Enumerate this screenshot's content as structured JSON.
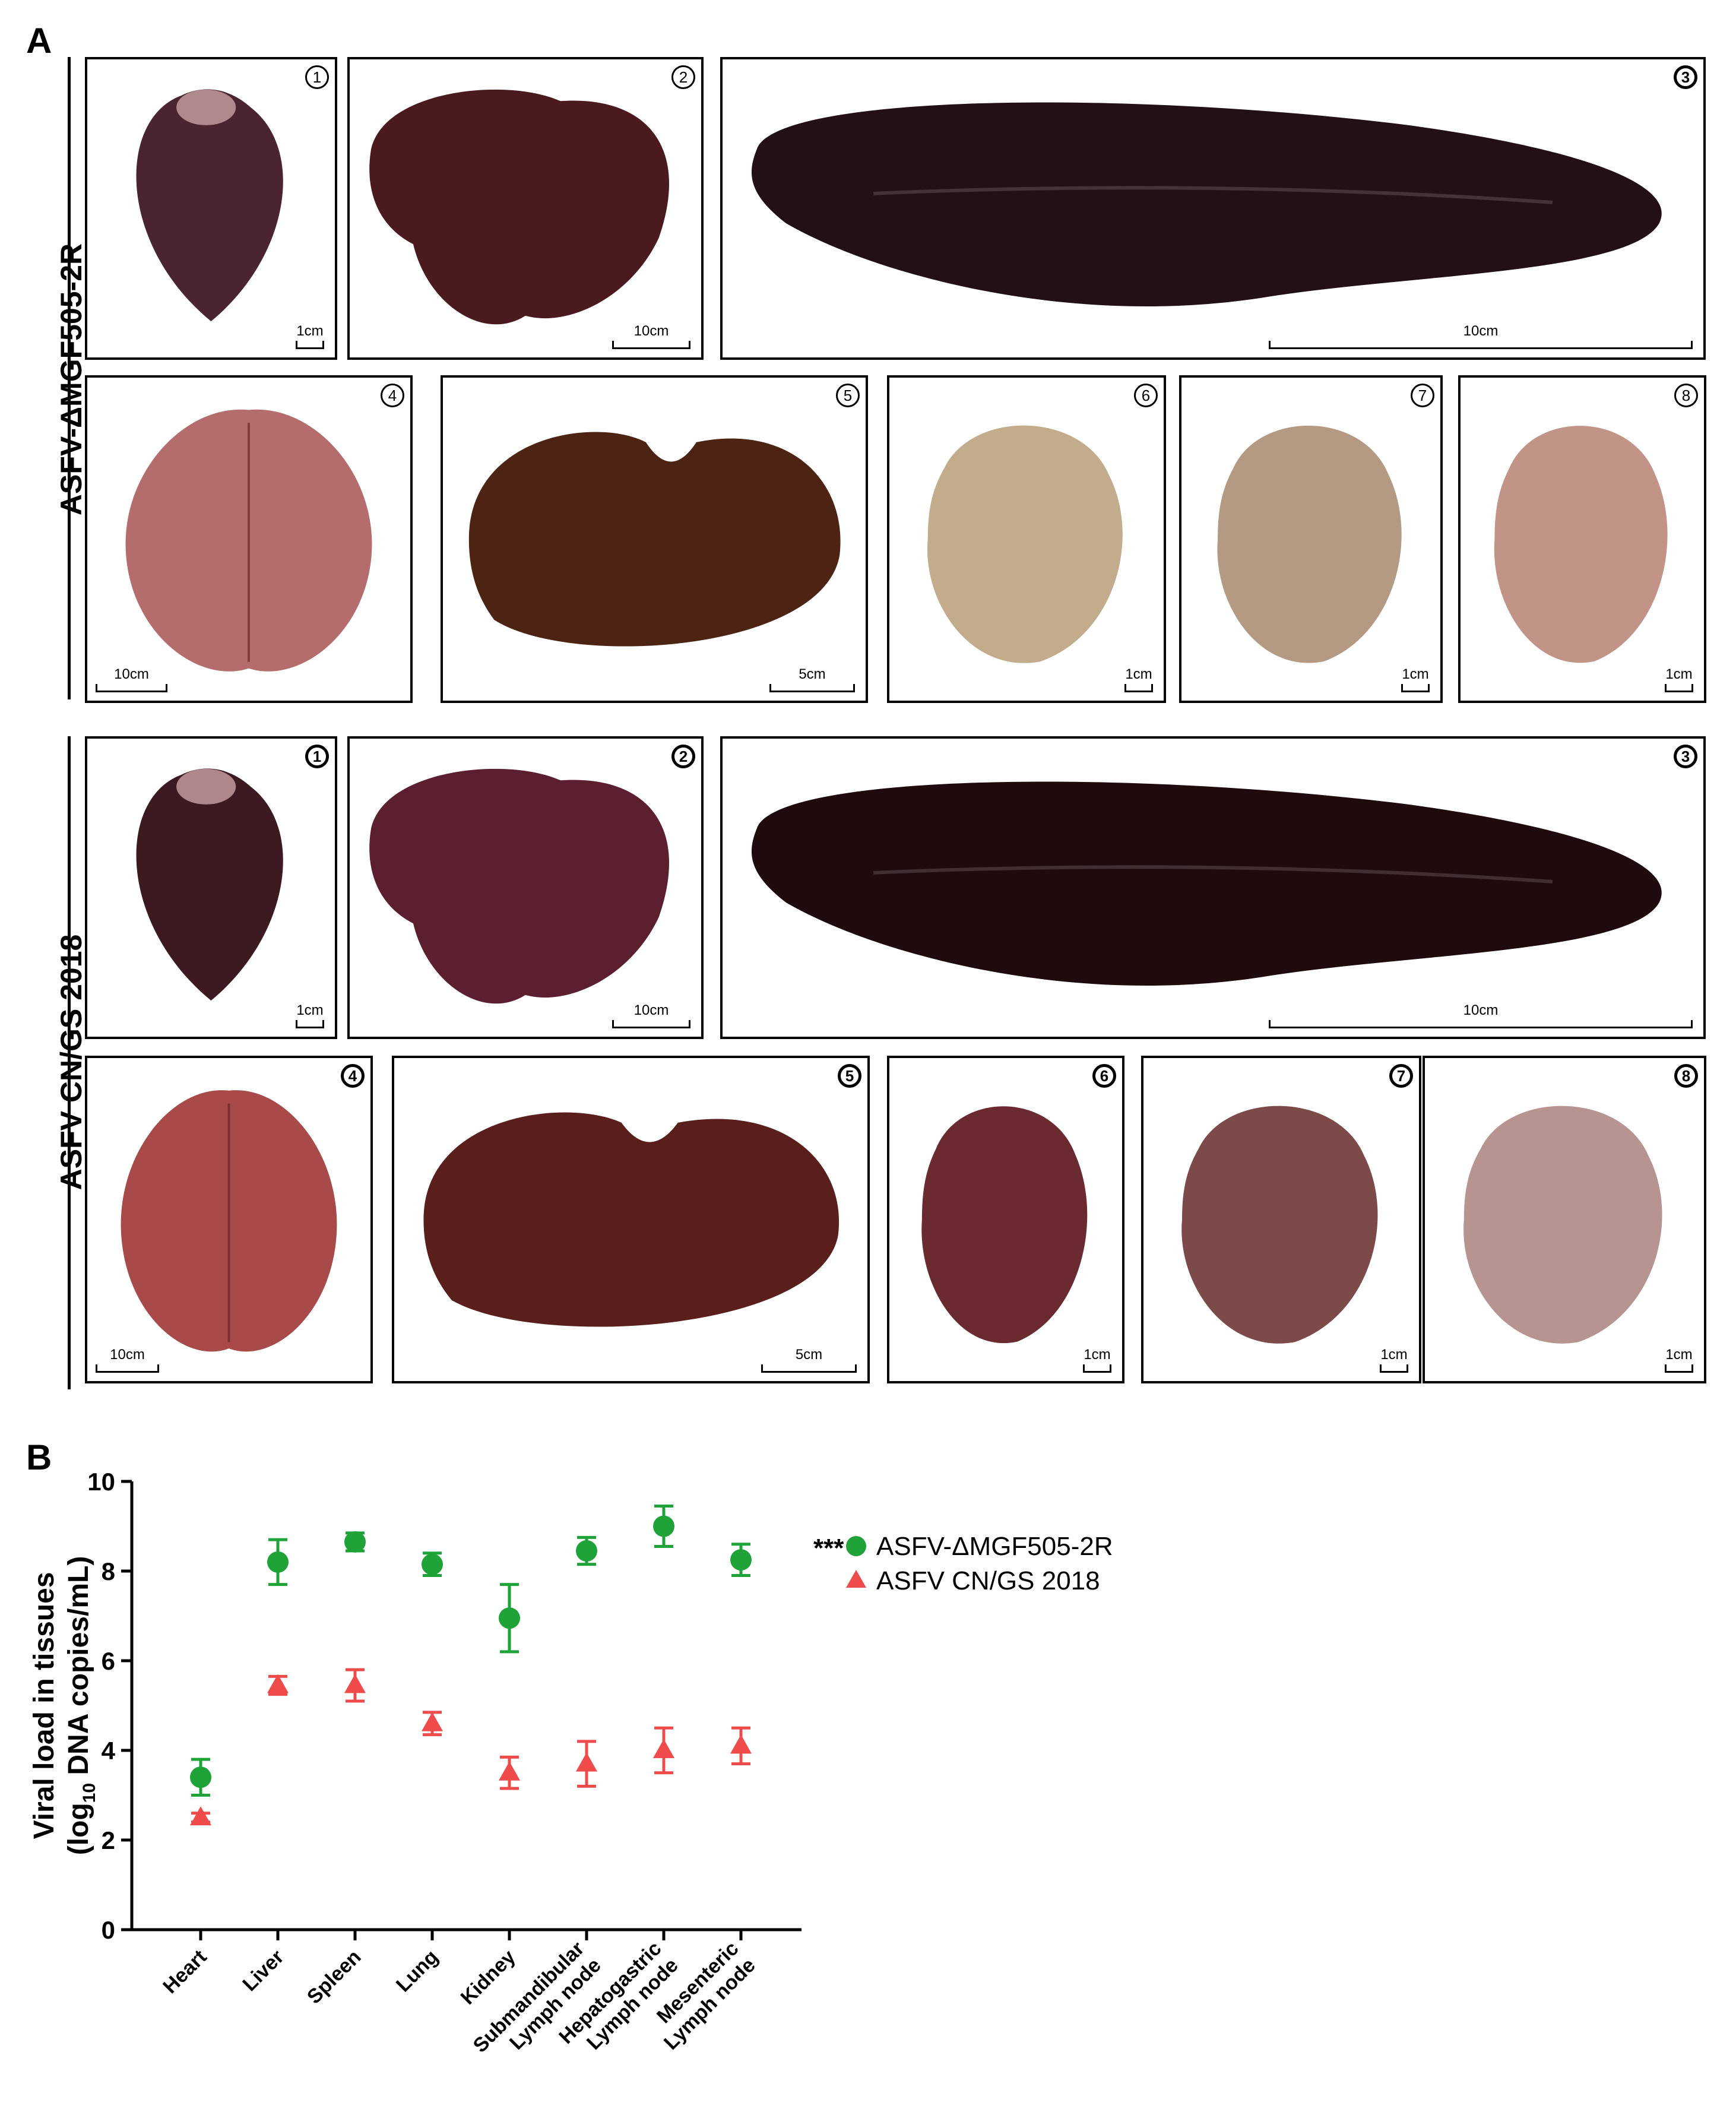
{
  "panel_a": {
    "letter": "A",
    "groups": [
      {
        "label": "ASFV-ΔMGF505-2R",
        "tiles": [
          {
            "num": "1",
            "scale": "1cm",
            "organ": "heart",
            "color": "#4a2530"
          },
          {
            "num": "2",
            "scale": "10cm",
            "organ": "liver",
            "color": "#4a1a1e"
          },
          {
            "num": "3",
            "scale": "10cm",
            "organ": "spleen",
            "color": "#231014"
          },
          {
            "num": "4",
            "scale": "10cm",
            "organ": "lung",
            "color": "#b56c6c"
          },
          {
            "num": "5",
            "scale": "5cm",
            "organ": "kidney",
            "color": "#4d2414"
          },
          {
            "num": "6",
            "scale": "1cm",
            "organ": "lymph-node",
            "color": "#c2ac8c"
          },
          {
            "num": "7",
            "scale": "1cm",
            "organ": "lymph-node",
            "color": "#b49a82"
          },
          {
            "num": "8",
            "scale": "1cm",
            "organ": "lymph-node",
            "color": "#c29488"
          }
        ]
      },
      {
        "label": "ASFV CN/GS 2018",
        "tiles": [
          {
            "num": "1",
            "scale": "1cm",
            "organ": "heart",
            "color": "#3d1a22"
          },
          {
            "num": "2",
            "scale": "10cm",
            "organ": "liver",
            "color": "#5c1f30"
          },
          {
            "num": "3",
            "scale": "10cm",
            "organ": "spleen",
            "color": "#1f0a0e"
          },
          {
            "num": "4",
            "scale": "10cm",
            "organ": "lung",
            "color": "#a84a4a"
          },
          {
            "num": "5",
            "scale": "5cm",
            "organ": "kidney",
            "color": "#5a1f1c"
          },
          {
            "num": "6",
            "scale": "1cm",
            "organ": "lymph-node",
            "color": "#6a2a30"
          },
          {
            "num": "7",
            "scale": "1cm",
            "organ": "lymph-node",
            "color": "#7c4a48"
          },
          {
            "num": "8",
            "scale": "1cm",
            "organ": "lymph-node",
            "color": "#b89490"
          }
        ]
      }
    ]
  },
  "panel_b": {
    "letter": "B",
    "significance": "***",
    "chart_data": {
      "type": "scatter",
      "categories": [
        "Heart",
        "Liver",
        "Spleen",
        "Lung",
        "Kidney",
        "Submandibular Lymph node",
        "Hepatogastric Lymph node",
        "Mesenteric Lymph node"
      ],
      "category_lines": [
        [
          "Heart"
        ],
        [
          "Liver"
        ],
        [
          "Spleen"
        ],
        [
          "Lung"
        ],
        [
          "Kidney"
        ],
        [
          "Submandibular",
          "Lymph node"
        ],
        [
          "Hepatogastric",
          "Lymph node"
        ],
        [
          "Mesenteric",
          "Lymph node"
        ]
      ],
      "ylabel_line1": "Viral load in tissues",
      "ylabel_line2_prefix": "(log",
      "ylabel_line2_sub": "10",
      "ylabel_line2_suffix": " DNA copies/mL)",
      "ylim": [
        0,
        10
      ],
      "yticks": [
        "0",
        "2",
        "4",
        "6",
        "8",
        "10"
      ],
      "legend_position": "top-right",
      "series": [
        {
          "name": "ASFV-ΔMGF505-2R",
          "marker": "circle",
          "color": "#1fa339",
          "values": [
            3.4,
            8.2,
            8.65,
            8.15,
            6.95,
            8.45,
            9.0,
            8.25
          ],
          "errors": [
            0.4,
            0.5,
            0.2,
            0.25,
            0.75,
            0.3,
            0.45,
            0.35
          ]
        },
        {
          "name": "ASFV CN/GS 2018",
          "marker": "triangle",
          "color": "#ef4b4b",
          "values": [
            2.5,
            5.45,
            5.45,
            4.6,
            3.5,
            3.7,
            4.0,
            4.1
          ],
          "errors": [
            0.1,
            0.2,
            0.35,
            0.25,
            0.35,
            0.5,
            0.5,
            0.4
          ]
        }
      ]
    }
  }
}
